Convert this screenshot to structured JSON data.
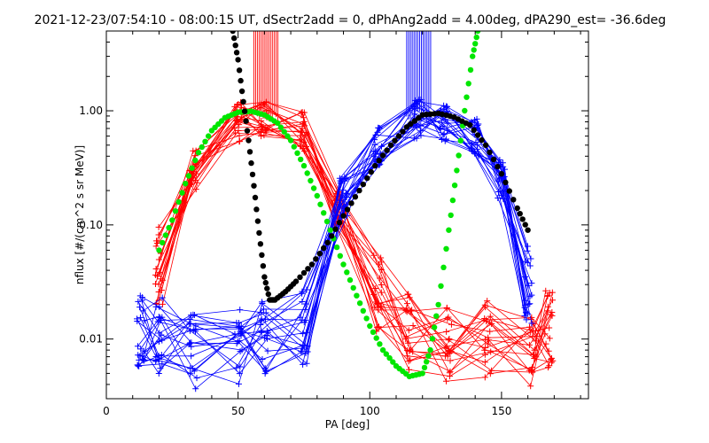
{
  "chart_data": {
    "type": "line",
    "title": "2021-12-23/07:54:10 - 08:00:15 UT, dSectr2add = 0, dPhAng2add = 4.00deg, dPA290_est= -36.6deg",
    "xlabel": "PA [deg]",
    "ylabel": "nflux [#/(cm^2 s sr MeV)]",
    "xlim": [
      0,
      183
    ],
    "ylim": [
      0.003,
      5.0
    ],
    "yscale": "log",
    "x_ticks": [
      0,
      50,
      100,
      150
    ],
    "x_tick_labels": [
      "0",
      "50",
      "100",
      "150"
    ],
    "y_ticks": [
      0.01,
      0.1,
      1.0
    ],
    "y_tick_labels": [
      "0.01",
      "0.10",
      "1.00"
    ],
    "grid": false,
    "series": [
      {
        "color": "#ff0000",
        "marker": "+",
        "kind": "pa-bundle",
        "x": [
          20,
          33,
          50,
          60,
          75,
          88,
          103,
          115,
          130,
          145,
          162,
          168
        ],
        "y": [
          0.045,
          0.3,
          0.8,
          0.85,
          0.65,
          0.15,
          0.025,
          0.012,
          0.009,
          0.01,
          0.008,
          0.012
        ]
      },
      {
        "color": "#0000ff",
        "marker": "+",
        "kind": "pa-bundle",
        "x": [
          13,
          20,
          33,
          50,
          60,
          75,
          90,
          103,
          118,
          128,
          140,
          150,
          160
        ],
        "y": [
          0.012,
          0.011,
          0.008,
          0.009,
          0.01,
          0.013,
          0.18,
          0.5,
          0.85,
          0.8,
          0.6,
          0.25,
          0.03
        ]
      },
      {
        "color": "#00e600",
        "marker": "dot",
        "kind": "model-curve",
        "x": [
          20,
          25,
          30,
          35,
          40,
          45,
          50,
          55,
          60,
          65,
          70,
          75,
          80,
          85,
          90,
          95,
          100,
          105,
          110,
          115,
          120,
          123,
          126,
          130,
          133,
          136,
          139,
          141
        ],
        "y": [
          0.06,
          0.11,
          0.23,
          0.43,
          0.67,
          0.87,
          0.97,
          0.99,
          0.92,
          0.78,
          0.55,
          0.33,
          0.18,
          0.09,
          0.045,
          0.024,
          0.013,
          0.008,
          0.0058,
          0.0047,
          0.005,
          0.008,
          0.02,
          0.09,
          0.3,
          1.0,
          3.0,
          5.0
        ]
      },
      {
        "color": "#000000",
        "marker": "dot",
        "kind": "model-curve",
        "x": [
          48,
          50,
          52,
          54,
          56,
          58,
          60,
          62,
          64,
          68,
          72,
          78,
          84,
          90,
          96,
          102,
          108,
          114,
          120,
          126,
          132,
          138,
          144,
          150,
          156,
          160
        ],
        "y": [
          5.0,
          2.8,
          1.2,
          0.55,
          0.22,
          0.085,
          0.035,
          0.022,
          0.022,
          0.026,
          0.032,
          0.045,
          0.07,
          0.12,
          0.2,
          0.33,
          0.5,
          0.72,
          0.92,
          0.95,
          0.88,
          0.75,
          0.5,
          0.28,
          0.14,
          0.09
        ]
      }
    ]
  }
}
